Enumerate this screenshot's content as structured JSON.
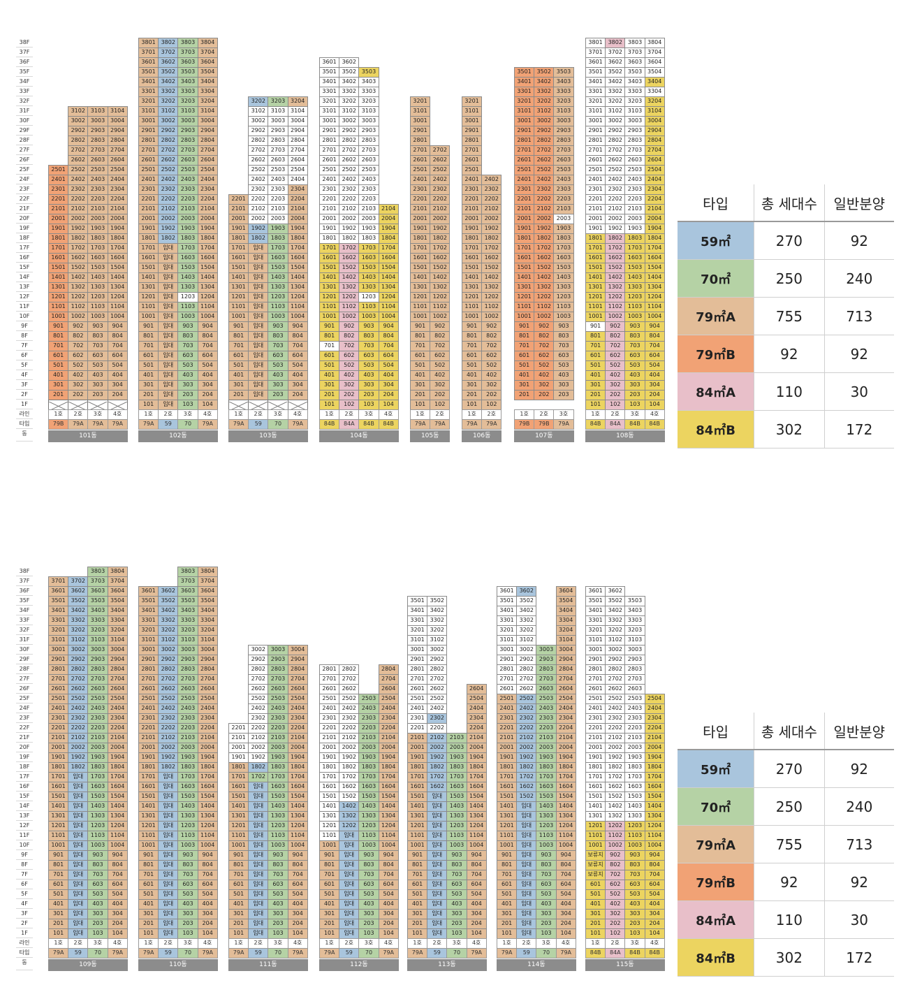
{
  "labels": {
    "line": "라인",
    "type": "타입",
    "dong": "동",
    "rental": "임대",
    "reserved": "보류지"
  },
  "colors": {
    "59": "#a9c5dd",
    "70": "#b5d2a5",
    "79A": "#e3bd98",
    "79B": "#f1a275",
    "84A": "#e8bfc9",
    "84B": "#ecd460",
    "W": "#ffffff"
  },
  "legend": {
    "headers": [
      "타입",
      "총 세대수",
      "일반분양"
    ],
    "rows": [
      {
        "type": "59㎡",
        "total": "270",
        "general": "92",
        "key": "59"
      },
      {
        "type": "70㎡",
        "total": "250",
        "general": "240",
        "key": "70"
      },
      {
        "type": "79㎡A",
        "total": "755",
        "general": "713",
        "key": "79A"
      },
      {
        "type": "79㎡B",
        "total": "92",
        "general": "92",
        "key": "79B"
      },
      {
        "type": "84㎡A",
        "total": "110",
        "general": "30",
        "key": "84A"
      },
      {
        "type": "84㎡B",
        "total": "302",
        "general": "172",
        "key": "84B"
      }
    ]
  },
  "sections": [
    {
      "buildings": [
        {
          "name": "101동",
          "left": 69,
          "cols": [
            {
              "line": "1호",
              "type": "79B",
              "min": 2,
              "max": 25,
              "color": "79B",
              "pilotis": true
            },
            {
              "line": "2호",
              "type": "79A",
              "min": 2,
              "max": 31,
              "color": "79A",
              "pilotis": true
            },
            {
              "line": "3호",
              "type": "79A",
              "min": 2,
              "max": 31,
              "color": "79A",
              "pilotis": true
            },
            {
              "line": "4호",
              "type": "79A",
              "min": 2,
              "max": 31,
              "color": "79A",
              "pilotis": true
            }
          ]
        },
        {
          "name": "102동",
          "left": 198,
          "cols": [
            {
              "line": "1호",
              "type": "79A",
              "min": 1,
              "max": 38,
              "color": "79A"
            },
            {
              "line": "2호",
              "type": "59",
              "min": 1,
              "max": 38,
              "color": "59",
              "rental": [
                1,
                17
              ],
              "over": {
                "12": "79A",
                "13": "79A",
                "14": "79A",
                "15": "79A",
                "16": "79A",
                "17": "79A",
                "2": "79A",
                "3": "79A",
                "4": "79A",
                "5": "79A",
                "6": "79A",
                "7": "79A",
                "8": "79A",
                "9": "79A",
                "10": "79A",
                "11": "79A",
                "1": "79A"
              }
            },
            {
              "line": "3호",
              "type": "70",
              "min": 1,
              "max": 38,
              "color": "70",
              "over": {
                "12": "W"
              }
            },
            {
              "line": "4호",
              "type": "79A",
              "min": 1,
              "max": 38,
              "color": "79A"
            }
          ]
        },
        {
          "name": "103동",
          "left": 327,
          "cols": [
            {
              "line": "1호",
              "type": "79A",
              "min": 2,
              "max": 22,
              "color": "79A",
              "pilotis": true
            },
            {
              "line": "2호",
              "type": "59",
              "min": 2,
              "max": 32,
              "color": "59",
              "pilotis": true,
              "rental": [
                2,
                17
              ],
              "over": {
                "2": "79A",
                "3": "79A",
                "4": "79A",
                "5": "79A",
                "6": "79A",
                "7": "79A",
                "8": "79A",
                "9": "79A",
                "10": "79A",
                "11": "79A",
                "12": "79A",
                "13": "79A",
                "14": "79A",
                "15": "79A",
                "16": "79A",
                "17": "79A",
                "21": "W",
                "20": "W",
                "22": "W",
                "23": "W",
                "24": "W",
                "25": "W",
                "26": "W",
                "27": "W",
                "28": "W",
                "29": "W",
                "30": "W",
                "31": "W"
              }
            },
            {
              "line": "3호",
              "type": "70",
              "min": 2,
              "max": 32,
              "color": "70",
              "pilotis": true,
              "over": {
                "21": "W",
                "20": "W",
                "22": "W",
                "23": "W",
                "24": "W",
                "25": "W",
                "26": "W",
                "27": "W",
                "28": "W",
                "29": "W",
                "30": "W",
                "31": "W"
              }
            },
            {
              "line": "4호",
              "type": "79A",
              "min": 2,
              "max": 32,
              "color": "79A",
              "pilotis": true,
              "over": {
                "24": "W",
                "25": "W",
                "26": "W",
                "27": "W",
                "28": "W",
                "29": "W",
                "30": "W",
                "31": "W"
              }
            }
          ]
        },
        {
          "name": "104동",
          "left": 457,
          "cols": [
            {
              "line": "1호",
              "type": "84B",
              "min": 1,
              "max": 36,
              "color": "84B",
              "wfrom": 18,
              "over": {
                "7": "W"
              }
            },
            {
              "line": "2호",
              "type": "84A",
              "min": 1,
              "max": 36,
              "color": "84A",
              "wfrom": 18
            },
            {
              "line": "3호",
              "type": "84B",
              "min": 1,
              "max": 35,
              "color": "84B",
              "wfrom": 18,
              "over": {
                "35": "84B",
                "12": "W"
              }
            },
            {
              "line": "4호",
              "type": "84B",
              "min": 1,
              "max": 21,
              "color": "84B"
            }
          ]
        },
        {
          "name": "105동",
          "left": 587,
          "cols": [
            {
              "line": "1호",
              "type": "79A",
              "min": 1,
              "max": 32,
              "color": "79A"
            },
            {
              "line": "2호",
              "type": "79A",
              "min": 1,
              "max": 27,
              "color": "79A"
            }
          ]
        },
        {
          "name": "106동",
          "left": 661,
          "cols": [
            {
              "line": "1호",
              "type": "79A",
              "min": 1,
              "max": 32,
              "color": "79A"
            },
            {
              "line": "2호",
              "type": "79A",
              "min": 1,
              "max": 24,
              "color": "79A"
            }
          ]
        },
        {
          "name": "107동",
          "left": 736,
          "cols": [
            {
              "line": "1호",
              "type": "79B",
              "min": 2,
              "max": 35,
              "color": "79B"
            },
            {
              "line": "2호",
              "type": "79B",
              "min": 2,
              "max": 35,
              "color": "79B"
            },
            {
              "line": "3호",
              "type": "79A",
              "min": 2,
              "max": 35,
              "color": "79A",
              "over": {
                "20": "W"
              }
            }
          ]
        },
        {
          "name": "108동",
          "left": 838,
          "cols": [
            {
              "line": "1호",
              "type": "84B",
              "min": 1,
              "max": 38,
              "color": "84B",
              "wfrom": 19,
              "over": {
                "9": "W"
              }
            },
            {
              "line": "2호",
              "type": "84A",
              "min": 1,
              "max": 38,
              "color": "84A",
              "wfrom": 19,
              "over": {
                "38": "84A"
              }
            },
            {
              "line": "3호",
              "type": "84B",
              "min": 1,
              "max": 38,
              "color": "84B",
              "wfrom": 19
            },
            {
              "line": "4호",
              "type": "84B",
              "min": 1,
              "max": 38,
              "color": "84B",
              "wfrom": 36,
              "over": {
                "35": "W",
                "34": "84B",
                "33": "W",
                "32": "84B"
              }
            }
          ]
        }
      ]
    },
    {
      "buildings": [
        {
          "name": "109동",
          "left": 69,
          "cols": [
            {
              "line": "1호",
              "type": "79A",
              "min": 1,
              "max": 37,
              "color": "79A"
            },
            {
              "line": "2호",
              "type": "59",
              "min": 1,
              "max": 37,
              "color": "59",
              "rental": [
                1,
                17
              ]
            },
            {
              "line": "3호",
              "type": "70",
              "min": 1,
              "max": 38,
              "color": "70"
            },
            {
              "line": "4호",
              "type": "79A",
              "min": 1,
              "max": 38,
              "color": "79A"
            }
          ]
        },
        {
          "name": "110동",
          "left": 198,
          "cols": [
            {
              "line": "1호",
              "type": "79A",
              "min": 1,
              "max": 36,
              "color": "79A"
            },
            {
              "line": "2호",
              "type": "59",
              "min": 1,
              "max": 36,
              "color": "59",
              "rental": [
                1,
                17
              ]
            },
            {
              "line": "3호",
              "type": "70",
              "min": 1,
              "max": 38,
              "color": "70"
            },
            {
              "line": "4호",
              "type": "79A",
              "min": 1,
              "max": 38,
              "color": "79A"
            }
          ]
        },
        {
          "name": "111동",
          "left": 327,
          "cols": [
            {
              "line": "1호",
              "type": "79A",
              "min": 1,
              "max": 22,
              "color": "79A",
              "wfrom": 19
            },
            {
              "line": "2호",
              "type": "59",
              "min": 1,
              "max": 30,
              "color": "59",
              "rental": [
                1,
                16
              ],
              "wfrom": 19,
              "over": {
                "17": "70",
                "16": "59",
                "14": "59"
              }
            },
            {
              "line": "3호",
              "type": "70",
              "min": 1,
              "max": 30,
              "color": "70",
              "over": {
                "28": "70",
                "29": "70"
              }
            },
            {
              "line": "4호",
              "type": "79A",
              "min": 1,
              "max": 30,
              "color": "79A"
            }
          ]
        },
        {
          "name": "112동",
          "left": 457,
          "cols": [
            {
              "line": "1호",
              "type": "79A",
              "min": 1,
              "max": 28,
              "color": "79A",
              "wfrom": 11
            },
            {
              "line": "2호",
              "type": "59",
              "min": 1,
              "max": 28,
              "color": "59",
              "rental": [
                1,
                11
              ],
              "wfrom": 15,
              "over": {
                "14": "59",
                "13": "59",
                "12": "59"
              }
            },
            {
              "line": "3호",
              "type": "70",
              "min": 1,
              "max": 25,
              "color": "70",
              "wfrom": 26
            },
            {
              "line": "4호",
              "type": "79A",
              "min": 1,
              "max": 28,
              "color": "79A"
            }
          ]
        },
        {
          "name": "113동",
          "left": 583,
          "cols": [
            {
              "line": "1호",
              "type": "79A",
              "min": 1,
              "max": 35,
              "color": "79A",
              "wfrom": 22
            },
            {
              "line": "2호",
              "type": "59",
              "min": 1,
              "max": 35,
              "color": "59",
              "rental": [
                1,
                15
              ],
              "wfrom": 22,
              "over": {
                "23": "59",
                "16": "59",
                "17": "59",
                "18": "59",
                "19": "59",
                "20": "59",
                "21": "59"
              }
            },
            {
              "line": "3호",
              "type": "70",
              "min": 1,
              "max": 21,
              "color": "70"
            },
            {
              "line": "4호",
              "type": "79A",
              "min": 1,
              "max": 26,
              "color": "79A"
            }
          ]
        },
        {
          "name": "114동",
          "left": 711,
          "cols": [
            {
              "line": "1호",
              "type": "79A",
              "min": 1,
              "max": 36,
              "color": "79A",
              "wfrom": 26
            },
            {
              "line": "2호",
              "type": "59",
              "min": 1,
              "max": 36,
              "color": "59",
              "rental": [
                1,
                14
              ],
              "wfrom": 26,
              "over": {
                "36": "59"
              }
            },
            {
              "line": "3호",
              "type": "70",
              "min": 1,
              "max": 30,
              "color": "70",
              "wfrom": 31
            },
            {
              "line": "4호",
              "type": "79A",
              "min": 1,
              "max": 36,
              "color": "79A"
            }
          ]
        },
        {
          "name": "115동",
          "left": 838,
          "cols": [
            {
              "line": "1호",
              "type": "84B",
              "min": 1,
              "max": 36,
              "color": "84B",
              "wfrom": 13,
              "reserved": [
                7,
                9
              ]
            },
            {
              "line": "2호",
              "type": "84A",
              "min": 1,
              "max": 36,
              "color": "84A",
              "wfrom": 13
            },
            {
              "line": "3호",
              "type": "84B",
              "min": 1,
              "max": 35,
              "color": "84B",
              "wfrom": 13
            },
            {
              "line": "4호",
              "type": "84B",
              "min": 1,
              "max": 25,
              "color": "84B"
            }
          ]
        }
      ]
    }
  ]
}
